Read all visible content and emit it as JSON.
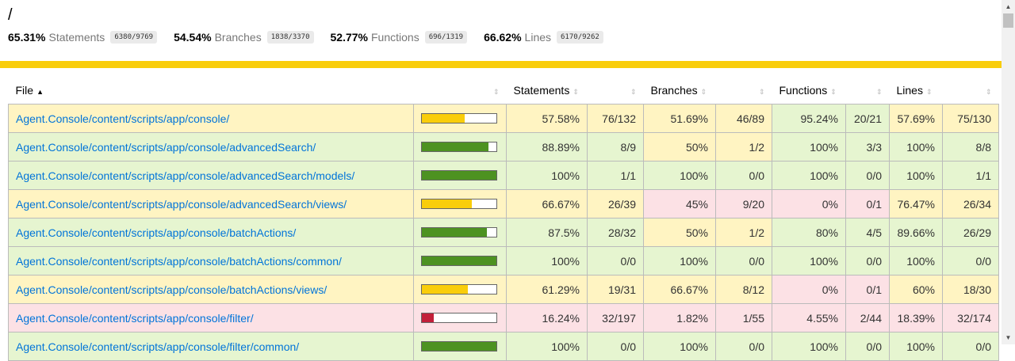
{
  "title": "/",
  "summary": [
    {
      "pct": "65.31%",
      "label": "Statements",
      "frac": "6380/9769"
    },
    {
      "pct": "54.54%",
      "label": "Branches",
      "frac": "1838/3370"
    },
    {
      "pct": "52.77%",
      "label": "Functions",
      "frac": "696/1319"
    },
    {
      "pct": "66.62%",
      "label": "Lines",
      "frac": "6170/9262"
    }
  ],
  "header": {
    "file": "File",
    "file_sort": "▲",
    "sort": "⇕",
    "statements": "Statements",
    "branches": "Branches",
    "functions": "Functions",
    "lines": "Lines"
  },
  "colors": {
    "high": "#4d9221",
    "medium": "#f9cd0b",
    "low": "#c21f39"
  },
  "rows": [
    {
      "file": "Agent.Console/content/scripts/app/console/",
      "level": "medium",
      "coverage": 0.5758,
      "stmt_pct": "57.58%",
      "stmt_frac": "76/132",
      "stmt_lvl": "medium",
      "br_pct": "51.69%",
      "br_frac": "46/89",
      "br_lvl": "medium",
      "fn_pct": "95.24%",
      "fn_frac": "20/21",
      "fn_lvl": "high",
      "ln_pct": "57.69%",
      "ln_frac": "75/130",
      "ln_lvl": "medium"
    },
    {
      "file": "Agent.Console/content/scripts/app/console/advancedSearch/",
      "level": "high",
      "coverage": 0.8889,
      "stmt_pct": "88.89%",
      "stmt_frac": "8/9",
      "stmt_lvl": "high",
      "br_pct": "50%",
      "br_frac": "1/2",
      "br_lvl": "medium",
      "fn_pct": "100%",
      "fn_frac": "3/3",
      "fn_lvl": "high",
      "ln_pct": "100%",
      "ln_frac": "8/8",
      "ln_lvl": "high"
    },
    {
      "file": "Agent.Console/content/scripts/app/console/advancedSearch/models/",
      "level": "high",
      "coverage": 1,
      "stmt_pct": "100%",
      "stmt_frac": "1/1",
      "stmt_lvl": "high",
      "br_pct": "100%",
      "br_frac": "0/0",
      "br_lvl": "high",
      "fn_pct": "100%",
      "fn_frac": "0/0",
      "fn_lvl": "high",
      "ln_pct": "100%",
      "ln_frac": "1/1",
      "ln_lvl": "high"
    },
    {
      "file": "Agent.Console/content/scripts/app/console/advancedSearch/views/",
      "level": "medium",
      "coverage": 0.6667,
      "stmt_pct": "66.67%",
      "stmt_frac": "26/39",
      "stmt_lvl": "medium",
      "br_pct": "45%",
      "br_frac": "9/20",
      "br_lvl": "low",
      "fn_pct": "0%",
      "fn_frac": "0/1",
      "fn_lvl": "low",
      "ln_pct": "76.47%",
      "ln_frac": "26/34",
      "ln_lvl": "medium"
    },
    {
      "file": "Agent.Console/content/scripts/app/console/batchActions/",
      "level": "high",
      "coverage": 0.875,
      "stmt_pct": "87.5%",
      "stmt_frac": "28/32",
      "stmt_lvl": "high",
      "br_pct": "50%",
      "br_frac": "1/2",
      "br_lvl": "medium",
      "fn_pct": "80%",
      "fn_frac": "4/5",
      "fn_lvl": "high",
      "ln_pct": "89.66%",
      "ln_frac": "26/29",
      "ln_lvl": "high"
    },
    {
      "file": "Agent.Console/content/scripts/app/console/batchActions/common/",
      "level": "high",
      "coverage": 1,
      "stmt_pct": "100%",
      "stmt_frac": "0/0",
      "stmt_lvl": "high",
      "br_pct": "100%",
      "br_frac": "0/0",
      "br_lvl": "high",
      "fn_pct": "100%",
      "fn_frac": "0/0",
      "fn_lvl": "high",
      "ln_pct": "100%",
      "ln_frac": "0/0",
      "ln_lvl": "high"
    },
    {
      "file": "Agent.Console/content/scripts/app/console/batchActions/views/",
      "level": "medium",
      "coverage": 0.6129,
      "stmt_pct": "61.29%",
      "stmt_frac": "19/31",
      "stmt_lvl": "medium",
      "br_pct": "66.67%",
      "br_frac": "8/12",
      "br_lvl": "medium",
      "fn_pct": "0%",
      "fn_frac": "0/1",
      "fn_lvl": "low",
      "ln_pct": "60%",
      "ln_frac": "18/30",
      "ln_lvl": "medium"
    },
    {
      "file": "Agent.Console/content/scripts/app/console/filter/",
      "level": "low",
      "coverage": 0.1624,
      "stmt_pct": "16.24%",
      "stmt_frac": "32/197",
      "stmt_lvl": "low",
      "br_pct": "1.82%",
      "br_frac": "1/55",
      "br_lvl": "low",
      "fn_pct": "4.55%",
      "fn_frac": "2/44",
      "fn_lvl": "low",
      "ln_pct": "18.39%",
      "ln_frac": "32/174",
      "ln_lvl": "low"
    },
    {
      "file": "Agent.Console/content/scripts/app/console/filter/common/",
      "level": "high",
      "coverage": 1,
      "stmt_pct": "100%",
      "stmt_frac": "0/0",
      "stmt_lvl": "high",
      "br_pct": "100%",
      "br_frac": "0/0",
      "br_lvl": "high",
      "fn_pct": "100%",
      "fn_frac": "0/0",
      "fn_lvl": "high",
      "ln_pct": "100%",
      "ln_frac": "0/0",
      "ln_lvl": "high"
    }
  ]
}
